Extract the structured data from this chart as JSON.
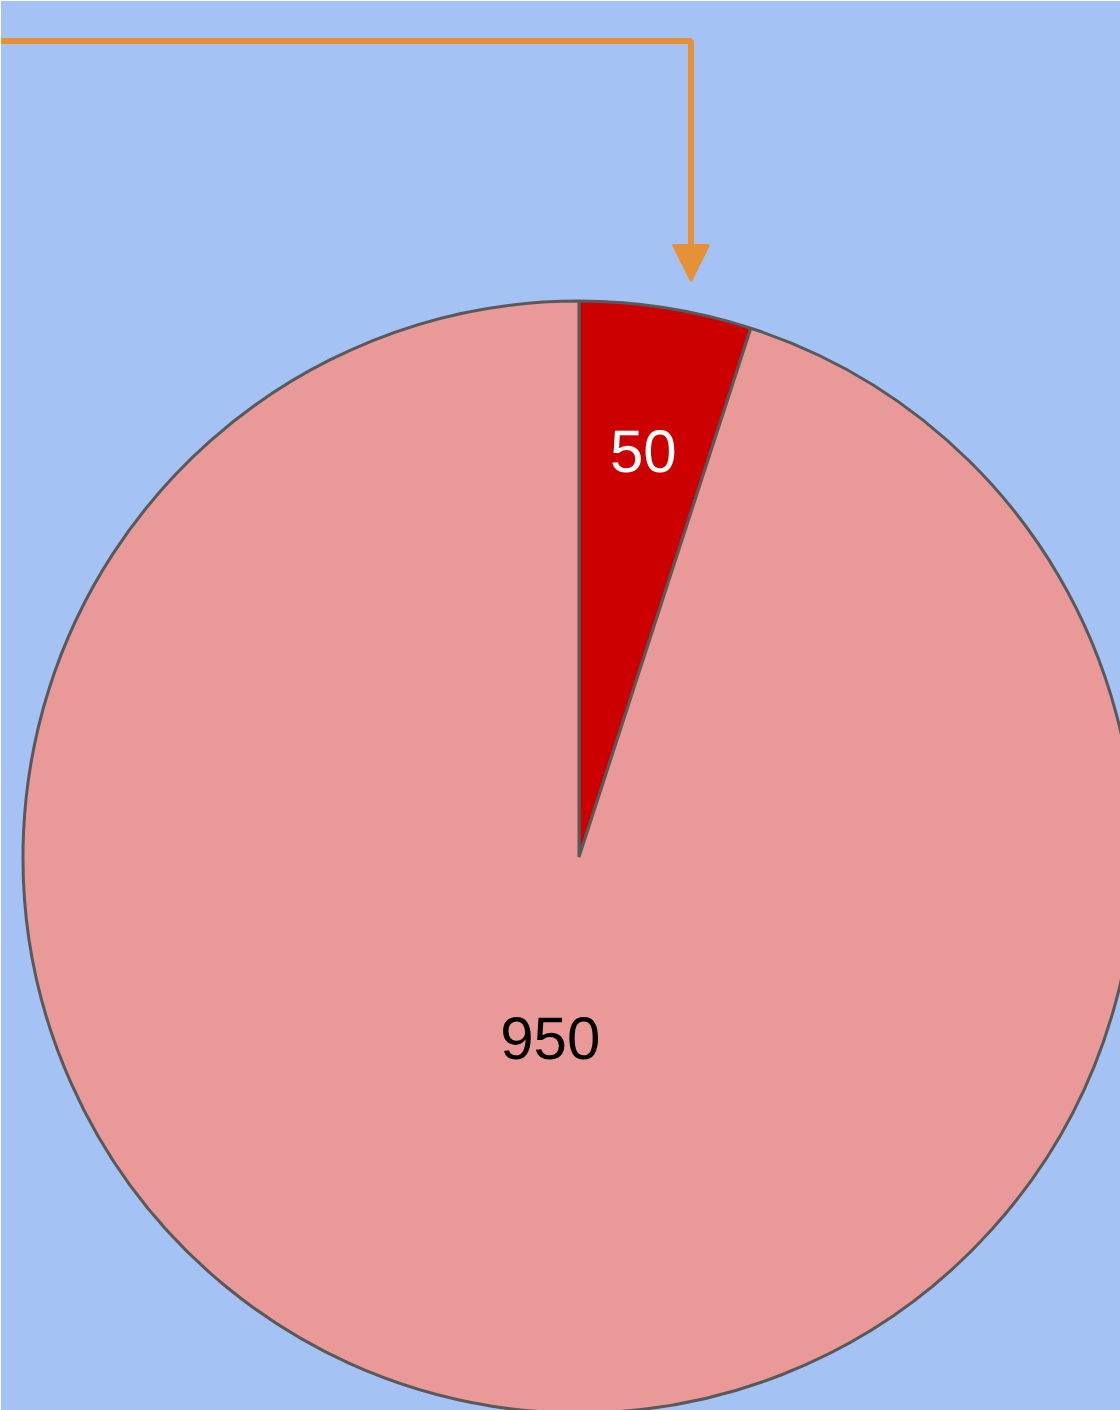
{
  "chart_data": {
    "type": "pie",
    "categories": [
      null,
      null
    ],
    "values": [
      50,
      950
    ],
    "colors": [
      "#cc0000",
      "#ea9999"
    ],
    "data_labels": true
  }
}
